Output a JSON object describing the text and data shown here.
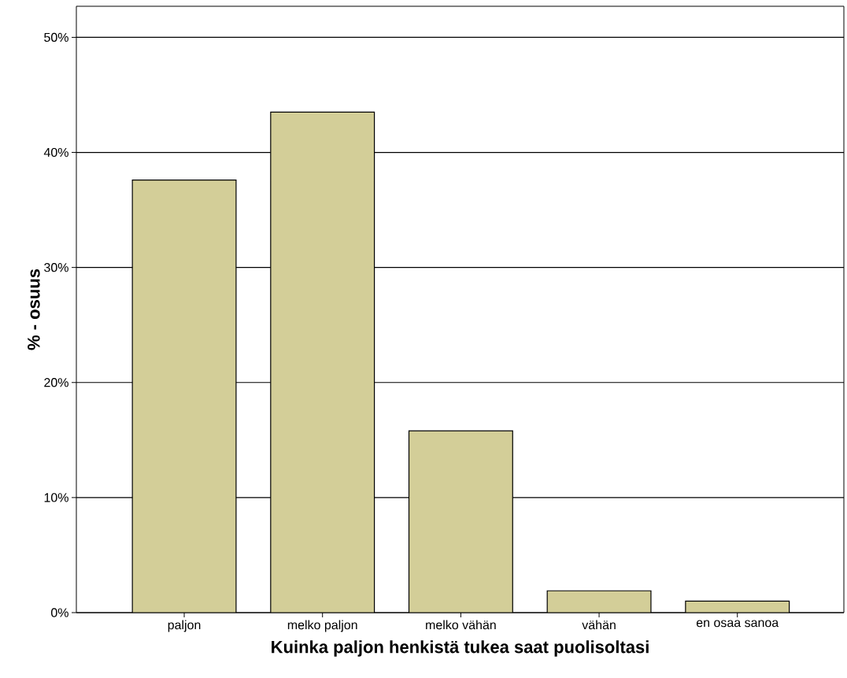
{
  "chart_data": {
    "type": "bar",
    "xlabel": "Kuinka paljon henkistä tukea saat puolisoltasi",
    "ylabel": "% - osuus",
    "categories": [
      "paljon",
      "melko paljon",
      "melko vähän",
      "vähän",
      "en osaa sanoa"
    ],
    "values": [
      37.6,
      43.5,
      15.8,
      1.9,
      1.0
    ],
    "color": "#d3ce98",
    "ylim": [
      0,
      52.7
    ],
    "yticks": [
      {
        "value": 0,
        "label": "0%"
      },
      {
        "value": 10,
        "label": "10%"
      },
      {
        "value": 20,
        "label": "20%"
      },
      {
        "value": 30,
        "label": "30%"
      },
      {
        "value": 40,
        "label": "40%"
      },
      {
        "value": 50,
        "label": "50%"
      }
    ],
    "grid": "y"
  }
}
